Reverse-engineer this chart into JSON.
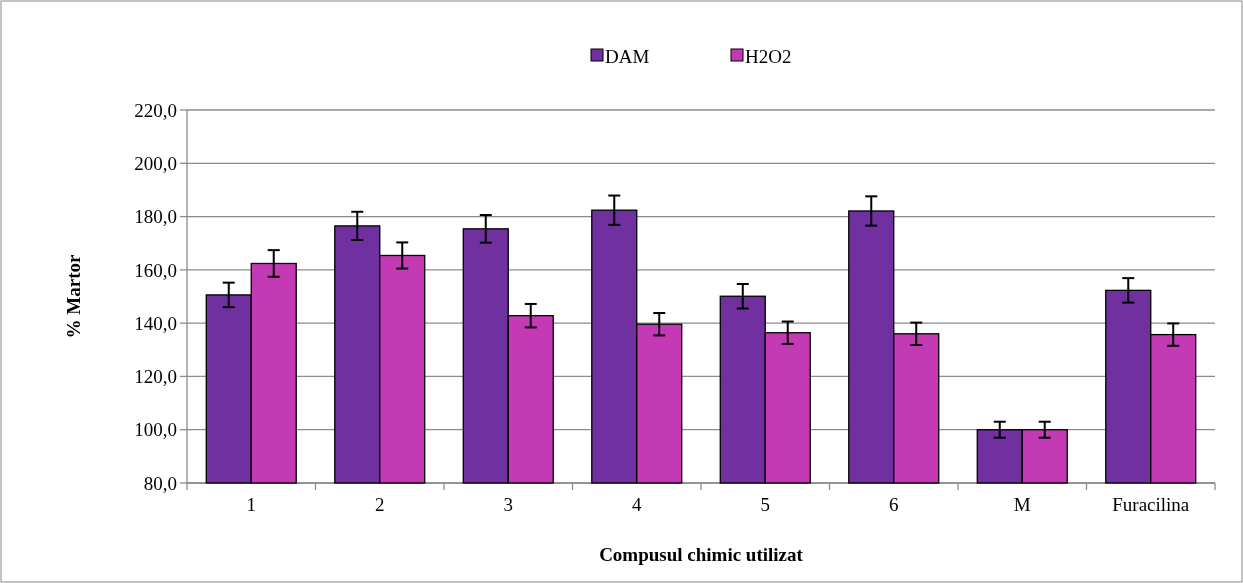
{
  "chart_data": {
    "type": "bar",
    "xlabel": "Compusul chimic utilizat",
    "ylabel": "% Martor",
    "categories": [
      "1",
      "2",
      "3",
      "4",
      "5",
      "6",
      "M",
      "Furacilina"
    ],
    "series": [
      {
        "name": "DAM",
        "color": "#7030a0",
        "values": [
          150.6,
          176.5,
          175.4,
          182.4,
          150.1,
          182.1,
          100,
          152.3
        ],
        "errors": [
          4.6,
          5.3,
          5.2,
          5.5,
          4.6,
          5.5,
          3,
          4.6
        ]
      },
      {
        "name": "H2O2",
        "color": "#c43ab4",
        "values": [
          162.4,
          165.4,
          142.8,
          139.6,
          136.4,
          136.0,
          100,
          135.7
        ],
        "errors": [
          5,
          4.9,
          4.4,
          4.2,
          4.2,
          4.2,
          3,
          4.2
        ]
      }
    ],
    "ylim": [
      80,
      220
    ],
    "yticks": [
      {
        "value": 80,
        "label": "80,0"
      },
      {
        "value": 100,
        "label": "100,0"
      },
      {
        "value": 120,
        "label": "120,0"
      },
      {
        "value": 140,
        "label": "140,0"
      },
      {
        "value": 160,
        "label": "160,0"
      },
      {
        "value": 180,
        "label": "180,0"
      },
      {
        "value": 200,
        "label": "200,0"
      },
      {
        "value": 220,
        "label": "220,0"
      }
    ],
    "grid": "y",
    "legend": "top"
  }
}
